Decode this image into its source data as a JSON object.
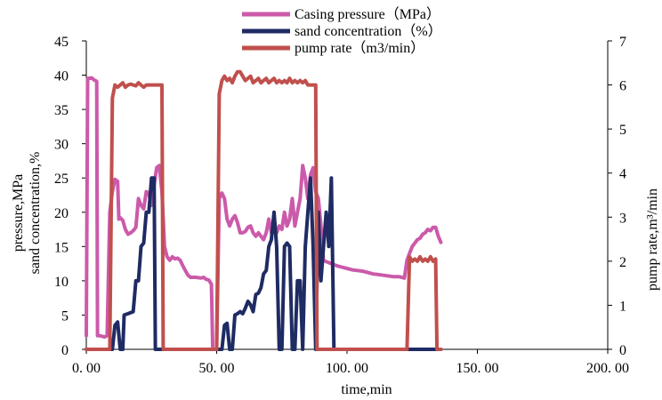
{
  "chart_data": {
    "type": "line",
    "xlabel": "time,min",
    "ylabel_left_lines": [
      "sand concentration,%",
      "pressure,MPa"
    ],
    "ylabel_right": "pump rate,m³/min",
    "xlim": [
      0,
      200
    ],
    "ylim_left": [
      0,
      45
    ],
    "ylim_right": [
      0,
      7
    ],
    "x_ticks": [
      0,
      50,
      100,
      150,
      200
    ],
    "x_tick_labels": [
      "0. 00",
      "50. 00",
      "100. 00",
      "150. 00",
      "200. 00"
    ],
    "y_left_ticks": [
      0,
      5,
      10,
      15,
      20,
      25,
      30,
      35,
      40,
      45
    ],
    "y_left_tick_labels": [
      "0",
      "5",
      "10",
      "15",
      "20",
      "25",
      "30",
      "35",
      "40",
      "45"
    ],
    "y_right_ticks": [
      0,
      1,
      2,
      3,
      4,
      5,
      6,
      7
    ],
    "y_right_tick_labels": [
      "0",
      "1",
      "2",
      "3",
      "4",
      "5",
      "6",
      "7"
    ],
    "grid": false,
    "legend_position": "top-center",
    "series": [
      {
        "name": "Casing pressure（MPa）",
        "axis": "left",
        "color": "#cc5aaa",
        "points": [
          [
            0,
            2
          ],
          [
            0.5,
            39.5
          ],
          [
            2,
            39.6
          ],
          [
            3,
            39.3
          ],
          [
            4,
            39.1
          ],
          [
            4.3,
            2
          ],
          [
            5,
            2
          ],
          [
            7,
            1.8
          ],
          [
            8,
            2
          ],
          [
            9,
            20
          ],
          [
            10,
            23
          ],
          [
            11,
            24.8
          ],
          [
            12,
            24.5
          ],
          [
            12.5,
            19
          ],
          [
            13,
            19.2
          ],
          [
            14,
            18.8
          ],
          [
            15,
            17.5
          ],
          [
            16,
            16.8
          ],
          [
            17,
            17
          ],
          [
            18,
            17.3
          ],
          [
            19,
            17.8
          ],
          [
            20,
            22
          ],
          [
            21,
            21
          ],
          [
            22,
            20.5
          ],
          [
            23,
            23
          ],
          [
            24,
            22.8
          ],
          [
            25,
            21
          ],
          [
            26,
            24
          ],
          [
            27,
            26.5
          ],
          [
            28,
            26.8
          ],
          [
            29,
            23
          ],
          [
            30,
            15
          ],
          [
            31,
            13.5
          ],
          [
            32,
            13
          ],
          [
            33,
            13.5
          ],
          [
            34,
            13.2
          ],
          [
            35,
            13.3
          ],
          [
            36,
            13
          ],
          [
            37,
            12.2
          ],
          [
            38,
            11.5
          ],
          [
            39,
            10.8
          ],
          [
            40,
            10.5
          ],
          [
            42,
            10.5
          ],
          [
            44,
            10.4
          ],
          [
            45,
            10.5
          ],
          [
            46,
            10.2
          ],
          [
            47,
            10.1
          ],
          [
            48,
            9.5
          ],
          [
            48.5,
            0
          ],
          [
            49,
            0
          ],
          [
            50,
            0
          ],
          [
            51,
            22
          ],
          [
            52,
            22.8
          ],
          [
            53,
            22
          ],
          [
            54,
            19
          ],
          [
            55,
            18
          ],
          [
            56,
            19
          ],
          [
            57,
            19.5
          ],
          [
            58,
            18.5
          ],
          [
            59,
            17
          ],
          [
            60,
            17
          ],
          [
            61,
            17.2
          ],
          [
            62,
            17.8
          ],
          [
            63,
            18
          ],
          [
            64,
            17
          ],
          [
            65,
            16.5
          ],
          [
            66,
            17
          ],
          [
            67,
            16.5
          ],
          [
            68,
            16
          ],
          [
            69,
            17
          ],
          [
            70,
            19
          ],
          [
            71,
            17
          ],
          [
            72,
            17.5
          ],
          [
            73,
            17
          ],
          [
            74,
            18
          ],
          [
            75,
            17.5
          ],
          [
            76,
            20
          ],
          [
            77,
            18
          ],
          [
            78,
            19
          ],
          [
            79,
            22
          ],
          [
            80,
            18
          ],
          [
            81,
            20
          ],
          [
            82,
            22
          ],
          [
            83,
            26.8
          ],
          [
            84,
            25
          ],
          [
            85,
            22
          ],
          [
            86,
            25.5
          ],
          [
            87,
            26.5
          ],
          [
            88,
            23
          ],
          [
            89,
            22
          ],
          [
            90,
            18
          ],
          [
            91,
            13
          ],
          [
            92,
            12.8
          ],
          [
            94,
            12.5
          ],
          [
            96,
            12.2
          ],
          [
            98,
            12
          ],
          [
            100,
            11.8
          ],
          [
            102,
            11.6
          ],
          [
            104,
            11.5
          ],
          [
            106,
            11.4
          ],
          [
            108,
            11.2
          ],
          [
            110,
            11
          ],
          [
            112,
            10.9
          ],
          [
            114,
            10.8
          ],
          [
            116,
            10.7
          ],
          [
            118,
            10.6
          ],
          [
            120,
            10.6
          ],
          [
            121,
            10.5
          ],
          [
            122,
            10.4
          ],
          [
            123,
            13
          ],
          [
            124,
            14
          ],
          [
            125,
            15
          ],
          [
            126,
            15.5
          ],
          [
            127,
            16
          ],
          [
            128,
            16.2
          ],
          [
            129,
            16.8
          ],
          [
            130,
            17
          ],
          [
            131,
            17.5
          ],
          [
            132,
            17.3
          ],
          [
            133,
            17.8
          ],
          [
            134,
            17.8
          ],
          [
            135,
            16.5
          ],
          [
            136,
            15.6
          ]
        ]
      },
      {
        "name": "sand concentration（%）",
        "axis": "left",
        "color": "#1f2b63",
        "points": [
          [
            0,
            0
          ],
          [
            9,
            0
          ],
          [
            10,
            0
          ],
          [
            11,
            3.5
          ],
          [
            12,
            4
          ],
          [
            13,
            0
          ],
          [
            14,
            0
          ],
          [
            14.5,
            5
          ],
          [
            16,
            5.2
          ],
          [
            18,
            5.5
          ],
          [
            19,
            10
          ],
          [
            20,
            10
          ],
          [
            21,
            15
          ],
          [
            22,
            15.5
          ],
          [
            23,
            20
          ],
          [
            24,
            20
          ],
          [
            25,
            25
          ],
          [
            26,
            25
          ],
          [
            26.5,
            0
          ],
          [
            27,
            0
          ],
          [
            29,
            0
          ],
          [
            48,
            0
          ],
          [
            50,
            0
          ],
          [
            52,
            0
          ],
          [
            53,
            3.5
          ],
          [
            54,
            3.8
          ],
          [
            55,
            0
          ],
          [
            56,
            0
          ],
          [
            57,
            5
          ],
          [
            58,
            5.2
          ],
          [
            59,
            5.5
          ],
          [
            60,
            5.2
          ],
          [
            61,
            6
          ],
          [
            62,
            7
          ],
          [
            63,
            6.5
          ],
          [
            64,
            5.5
          ],
          [
            65,
            8
          ],
          [
            66,
            8.2
          ],
          [
            67,
            9
          ],
          [
            68,
            11
          ],
          [
            69,
            11.5
          ],
          [
            70,
            15
          ],
          [
            71,
            16
          ],
          [
            72,
            20
          ],
          [
            73,
            15
          ],
          [
            74,
            0
          ],
          [
            75,
            0
          ],
          [
            76,
            15
          ],
          [
            77,
            15.5
          ],
          [
            78,
            15
          ],
          [
            79,
            0
          ],
          [
            80,
            0
          ],
          [
            81,
            10
          ],
          [
            82,
            10
          ],
          [
            83,
            0
          ],
          [
            84,
            15
          ],
          [
            85,
            20
          ],
          [
            86,
            25
          ],
          [
            87,
            15
          ],
          [
            88,
            0
          ],
          [
            89,
            20
          ],
          [
            90,
            10
          ],
          [
            91,
            15
          ],
          [
            92,
            20
          ],
          [
            93,
            15
          ],
          [
            94,
            25
          ],
          [
            95,
            0
          ],
          [
            96,
            0
          ],
          [
            98,
            0
          ],
          [
            124,
            0
          ],
          [
            130,
            0
          ],
          [
            136,
            0
          ]
        ]
      },
      {
        "name": "pump rate（m3/min）",
        "axis": "right",
        "color": "#c0504d",
        "points": [
          [
            0,
            0
          ],
          [
            8,
            0
          ],
          [
            9,
            0
          ],
          [
            10,
            5.7
          ],
          [
            11,
            6
          ],
          [
            12,
            5.95
          ],
          [
            13,
            6
          ],
          [
            14,
            6.05
          ],
          [
            15,
            5.95
          ],
          [
            16,
            6
          ],
          [
            17,
            6.02
          ],
          [
            18,
            6
          ],
          [
            19,
            5.98
          ],
          [
            20,
            6.05
          ],
          [
            21,
            6
          ],
          [
            22,
            5.95
          ],
          [
            23,
            6
          ],
          [
            24,
            6
          ],
          [
            25,
            6
          ],
          [
            26,
            6
          ],
          [
            27,
            6
          ],
          [
            28,
            6
          ],
          [
            29,
            6
          ],
          [
            29.5,
            0
          ],
          [
            30,
            0
          ],
          [
            49,
            0
          ],
          [
            50,
            0
          ],
          [
            51,
            5.8
          ],
          [
            52,
            6.1
          ],
          [
            53,
            6.2
          ],
          [
            54,
            6.1
          ],
          [
            55,
            6.15
          ],
          [
            56,
            6.05
          ],
          [
            57,
            6.2
          ],
          [
            58,
            6.3
          ],
          [
            59,
            6.3
          ],
          [
            60,
            6.2
          ],
          [
            61,
            6.1
          ],
          [
            62,
            6.15
          ],
          [
            63,
            6.2
          ],
          [
            64,
            6.05
          ],
          [
            65,
            6.1
          ],
          [
            66,
            6.15
          ],
          [
            67,
            6.05
          ],
          [
            68,
            6.1
          ],
          [
            69,
            6.15
          ],
          [
            70,
            6.05
          ],
          [
            71,
            6.1
          ],
          [
            72,
            6.15
          ],
          [
            73,
            6.05
          ],
          [
            74,
            6.1
          ],
          [
            75,
            6.05
          ],
          [
            76,
            6.1
          ],
          [
            77,
            6.05
          ],
          [
            78,
            6.15
          ],
          [
            79,
            6.05
          ],
          [
            80,
            6.1
          ],
          [
            81,
            6.05
          ],
          [
            82,
            6.1
          ],
          [
            83,
            6.05
          ],
          [
            84,
            6.1
          ],
          [
            85,
            6
          ],
          [
            86,
            6
          ],
          [
            87,
            6
          ],
          [
            88,
            6
          ],
          [
            88.5,
            0
          ],
          [
            90,
            0
          ],
          [
            122,
            0
          ],
          [
            123,
            0
          ],
          [
            124,
            2.1
          ],
          [
            125,
            2
          ],
          [
            126,
            2.05
          ],
          [
            127,
            2
          ],
          [
            128,
            2.1
          ],
          [
            129,
            2
          ],
          [
            130,
            2.05
          ],
          [
            131,
            2
          ],
          [
            132,
            2.1
          ],
          [
            133,
            2
          ],
          [
            134,
            2.05
          ],
          [
            134.5,
            0
          ],
          [
            136,
            0
          ]
        ]
      }
    ]
  }
}
